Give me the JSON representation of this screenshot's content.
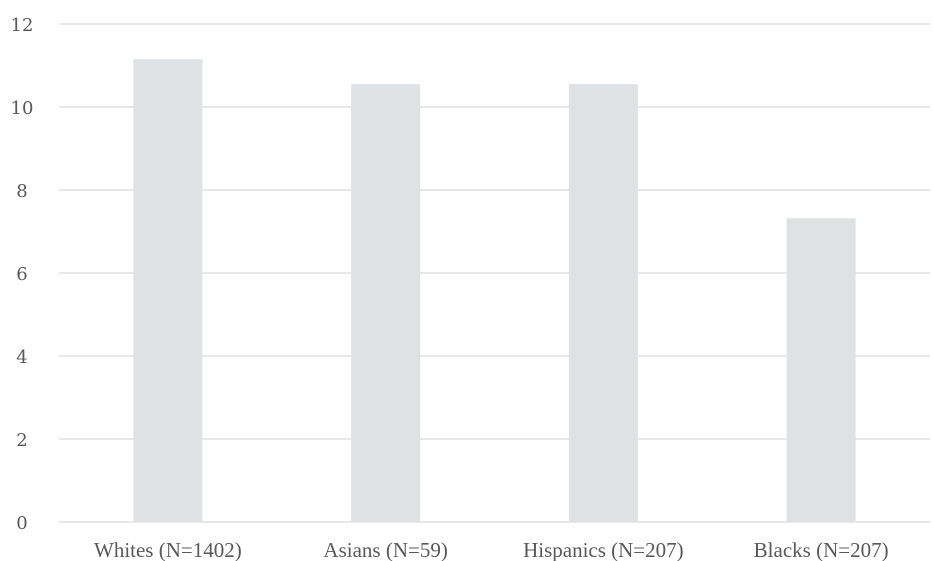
{
  "chart_data": {
    "type": "bar",
    "categories": [
      "Whites (N=1402)",
      "Asians (N=59)",
      "Hispanics (N=207)",
      "Blacks (N=207)"
    ],
    "values": [
      11.15,
      10.55,
      10.55,
      7.32
    ],
    "ylim": [
      0,
      12
    ],
    "yticks": [
      "0",
      "2",
      "4",
      "6",
      "8",
      "10",
      "12"
    ],
    "grid": true,
    "colors": {
      "bar": "#e0e1e3",
      "grid": "#d9d9d9",
      "text": "#595959"
    }
  }
}
